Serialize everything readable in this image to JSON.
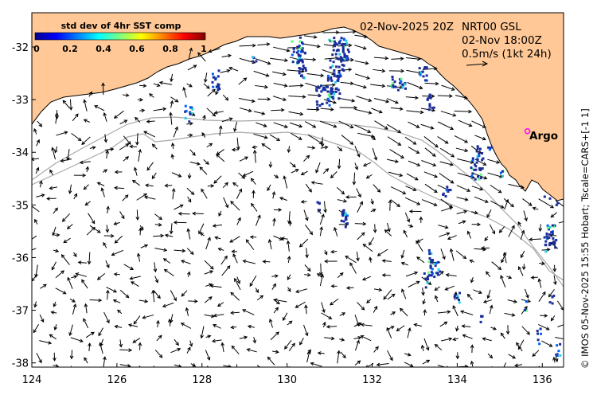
{
  "colorbar": {
    "title": "std dev of 4hr SST comp",
    "ticks": [
      "0",
      "0.2",
      "0.4",
      "0.6",
      "0.8",
      "1"
    ]
  },
  "header": {
    "timestamp": "02-Nov-2025 20Z",
    "product": "NRT00 GSL",
    "obs_time": "02-Nov 18:00Z",
    "scale_label": "0.5m/s (1kt 24h)"
  },
  "marker": {
    "label": "Argo",
    "lon": 135.65,
    "lat": -33.6,
    "color": "#ff00ff"
  },
  "credit": "© IMOS 05-Nov-2025 15:55 Hobart; Tscale=CARS+[-1 1]",
  "axes": {
    "x_ticks": [
      "124",
      "126",
      "128",
      "130",
      "132",
      "134",
      "136"
    ],
    "y_ticks": [
      "-32",
      "-33",
      "-34",
      "-35",
      "-36",
      "-37",
      "-38"
    ]
  },
  "colors": {
    "land": "#ffc896",
    "sea": "#ffffff",
    "sst_patch": "#1a2c9a",
    "contour": "#a8a8a8"
  }
}
